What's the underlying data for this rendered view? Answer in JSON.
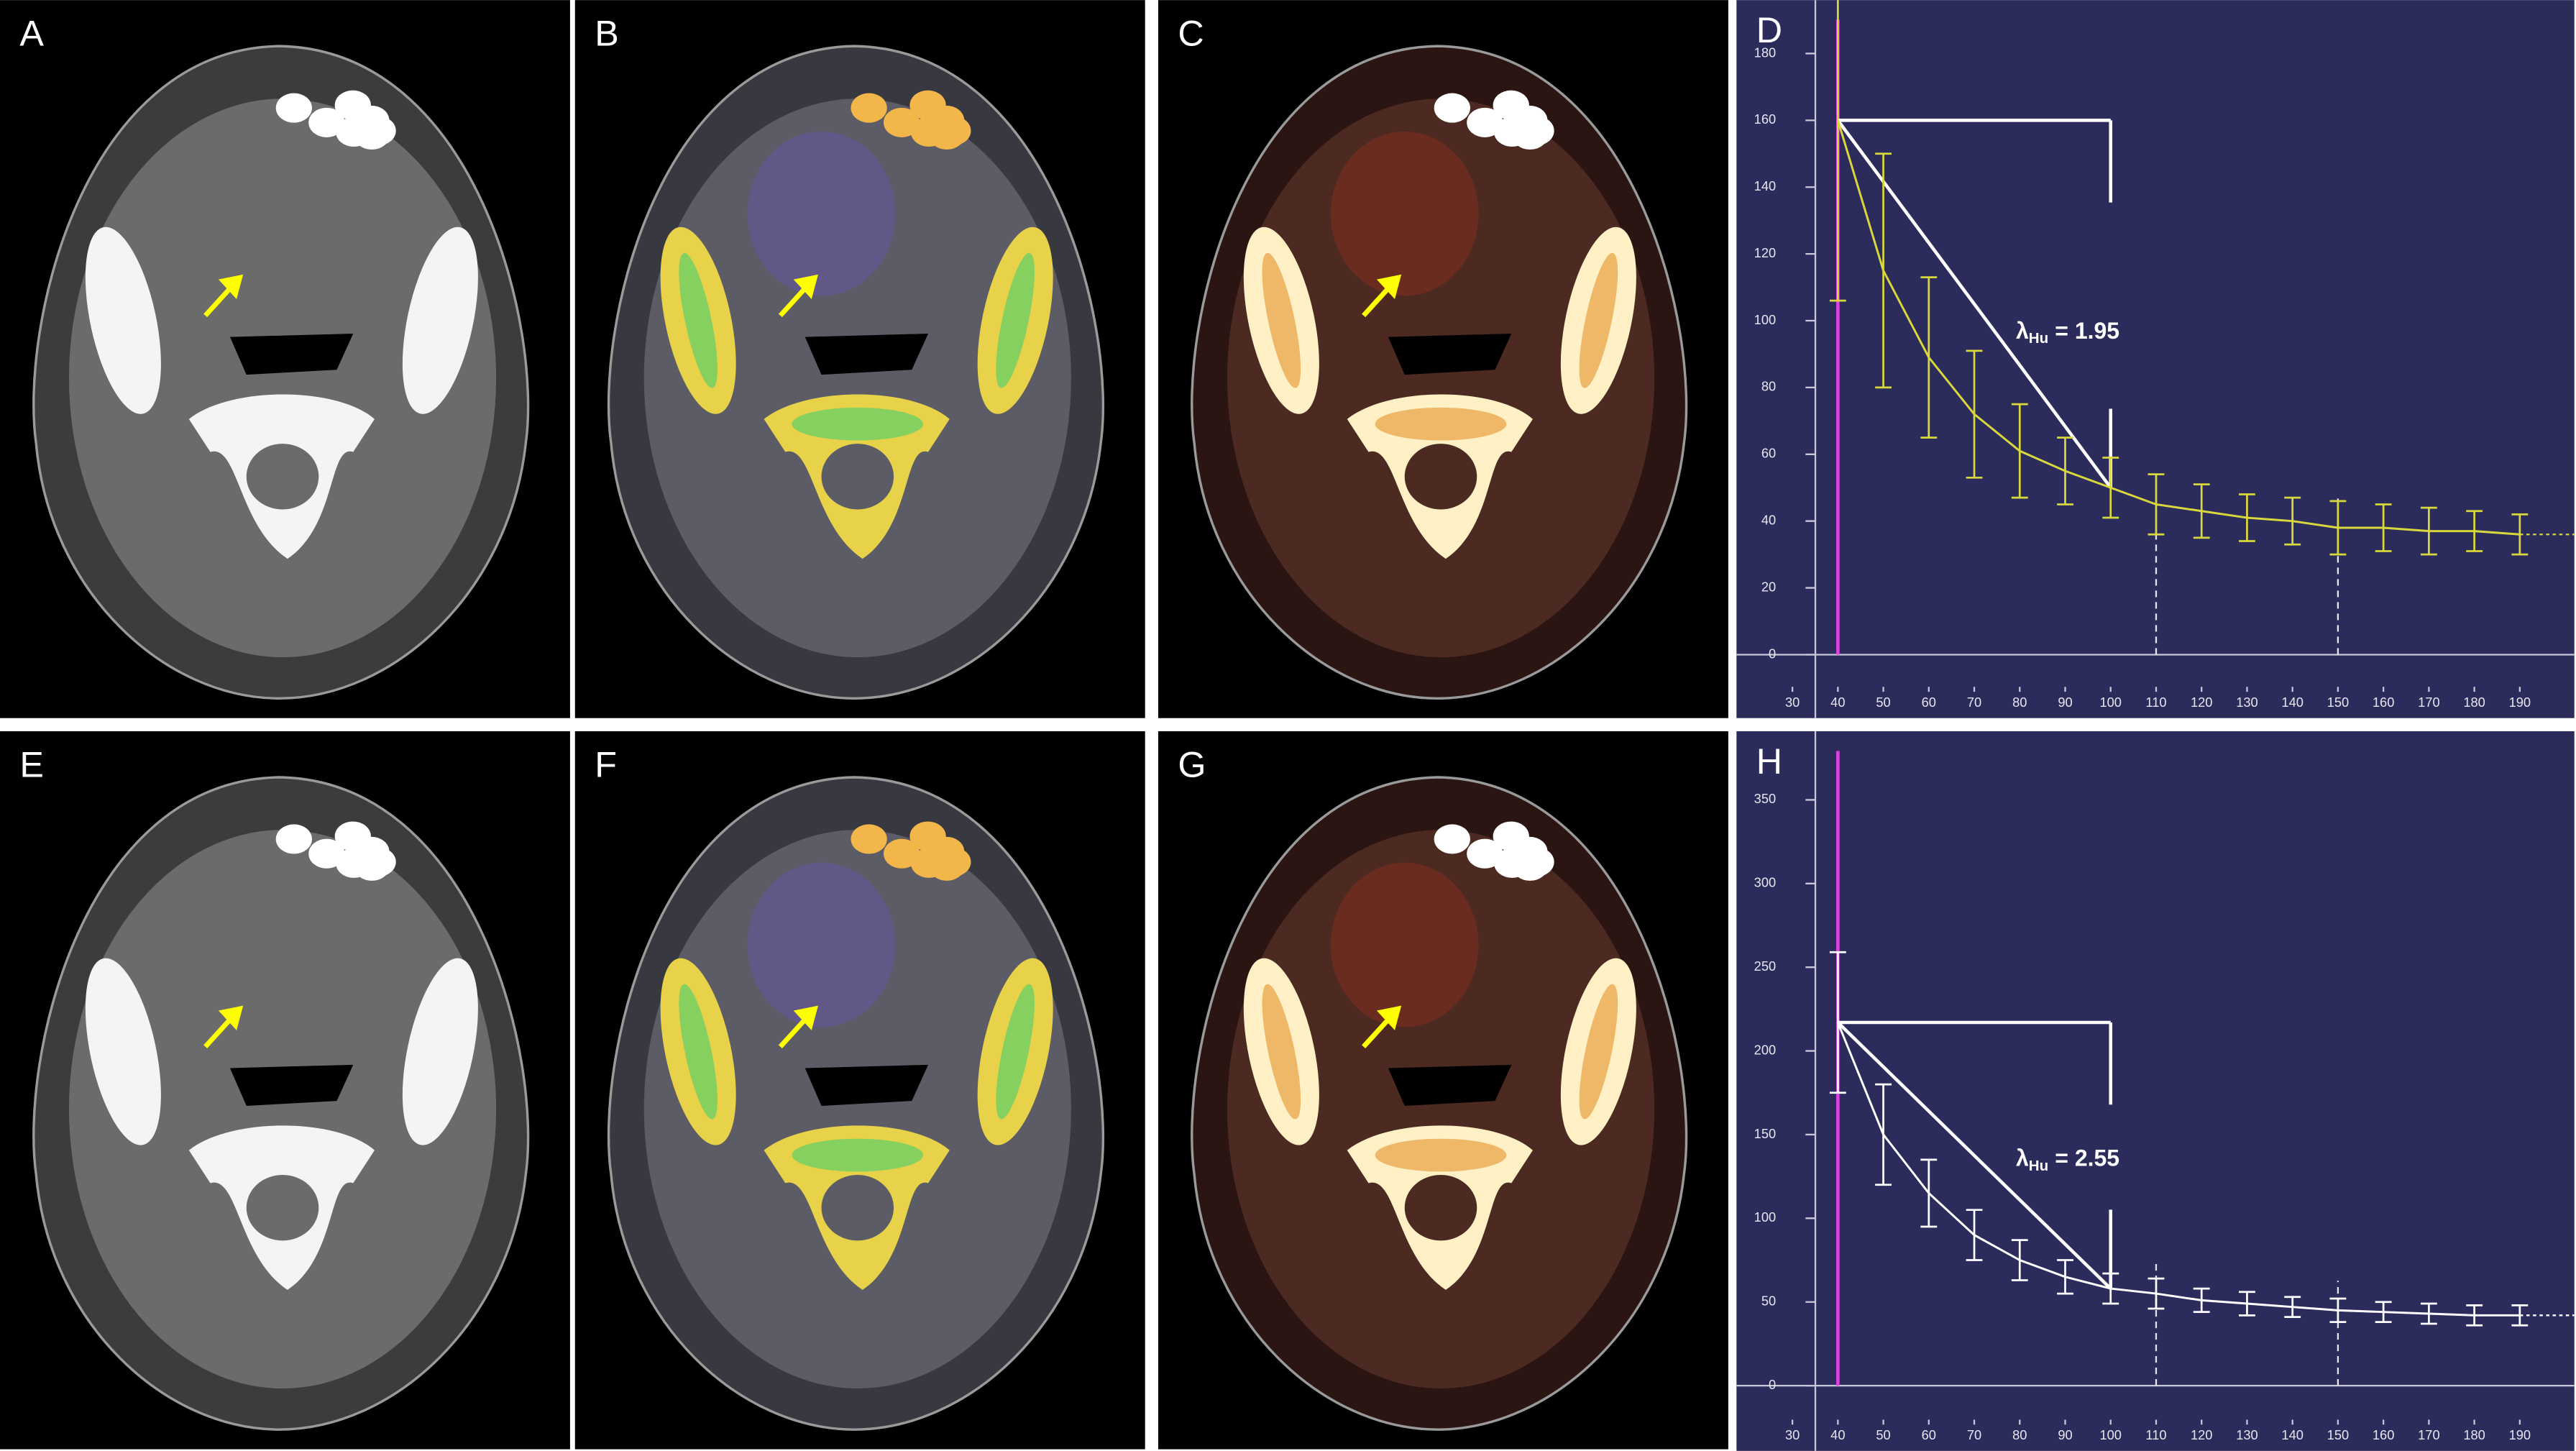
{
  "panels": [
    {
      "label": "A",
      "style": "ct"
    },
    {
      "label": "B",
      "style": "iodine"
    },
    {
      "label": "C",
      "style": "hot"
    },
    {
      "label": "E",
      "style": "ct"
    },
    {
      "label": "F",
      "style": "iodine"
    },
    {
      "label": "G",
      "style": "hot"
    }
  ],
  "chart_data": [
    {
      "type": "line",
      "panel_label": "D",
      "x": [
        40,
        50,
        60,
        70,
        80,
        90,
        100,
        110,
        120,
        130,
        140,
        150,
        160,
        170,
        180,
        190
      ],
      "series": [
        {
          "color": "#d8d83c",
          "values": [
            160,
            115,
            89,
            72,
            61,
            55,
            50,
            45,
            43,
            41,
            40,
            38,
            38,
            37,
            37,
            36
          ],
          "errors": [
            54,
            35,
            24,
            19,
            14,
            10,
            9,
            9,
            8,
            7,
            7,
            8,
            7,
            7,
            6,
            6
          ]
        }
      ],
      "annotation": {
        "symbol": "λ",
        "subscript": "Hu",
        "text": "= 1.95"
      },
      "xlim": [
        17.7,
        202
      ],
      "ylim": [
        -19,
        196
      ],
      "xticks": [
        30,
        40,
        50,
        60,
        70,
        80,
        90,
        100,
        110,
        120,
        130,
        140,
        150,
        160,
        170,
        180,
        190
      ],
      "yticks": [
        0,
        20,
        40,
        60,
        80,
        100,
        120,
        140,
        160,
        180
      ]
    },
    {
      "type": "line",
      "panel_label": "H",
      "x": [
        40,
        50,
        60,
        70,
        80,
        90,
        100,
        110,
        120,
        130,
        140,
        150,
        160,
        170,
        180,
        190
      ],
      "series": [
        {
          "color": "#ffffff",
          "values": [
            217,
            150,
            115,
            90,
            75,
            65,
            58,
            55,
            51,
            49,
            47,
            45,
            44,
            43,
            42,
            42
          ],
          "errors": [
            42,
            30,
            20,
            15,
            12,
            10,
            9,
            9,
            7,
            7,
            6,
            7,
            6,
            6,
            6,
            6
          ]
        }
      ],
      "annotation": {
        "symbol": "λ",
        "subscript": "Hu",
        "text": "= 2.55"
      },
      "xlim": [
        17.7,
        202
      ],
      "ylim": [
        -39,
        391
      ],
      "xticks": [
        30,
        40,
        50,
        60,
        70,
        80,
        90,
        100,
        110,
        120,
        130,
        140,
        150,
        160,
        170,
        180,
        190
      ],
      "yticks": [
        0,
        50,
        100,
        150,
        200,
        250,
        300,
        350
      ]
    }
  ]
}
